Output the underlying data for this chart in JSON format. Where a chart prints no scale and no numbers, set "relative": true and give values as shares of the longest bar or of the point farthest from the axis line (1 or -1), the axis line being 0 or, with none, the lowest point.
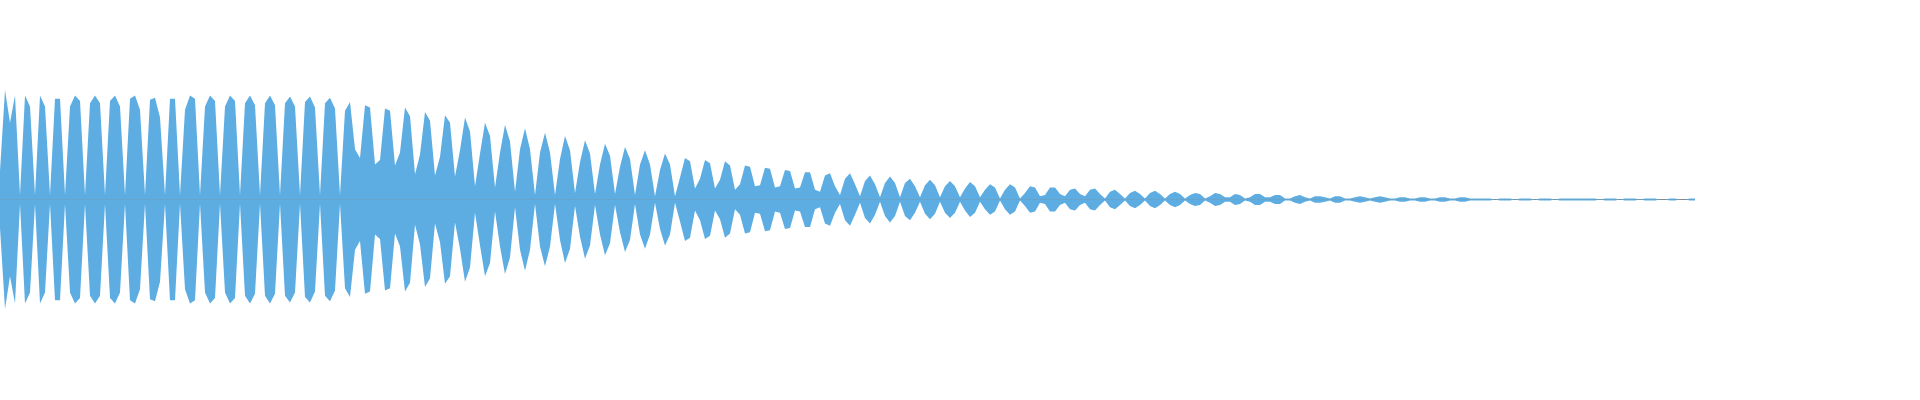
{
  "chart_data": {
    "type": "area",
    "relative": true,
    "categories": [
      null,
      null,
      null,
      null,
      null,
      null,
      null,
      null,
      null,
      null,
      null,
      null,
      null,
      null,
      null,
      null,
      null,
      null,
      null,
      null,
      null,
      null,
      null,
      null,
      null,
      null,
      null,
      null,
      null,
      null,
      null,
      null,
      null,
      null,
      null,
      null,
      null,
      null,
      null,
      null,
      null,
      null,
      null,
      null,
      null,
      null,
      null,
      null,
      null,
      null,
      null,
      null,
      null,
      null,
      null,
      null,
      null,
      null,
      null,
      null,
      null,
      null,
      null,
      null,
      null,
      null,
      null,
      null,
      null,
      null,
      null,
      null,
      null,
      null,
      null,
      null,
      null,
      null,
      null,
      null,
      null,
      null,
      null,
      null,
      null,
      null,
      null,
      null,
      null,
      null,
      null,
      null,
      null,
      null,
      null,
      null,
      null,
      null,
      null,
      null,
      null,
      null,
      null,
      null,
      null,
      null,
      null,
      null,
      null,
      null,
      null,
      null,
      null,
      null,
      null,
      null,
      null,
      null,
      null,
      null,
      null,
      null,
      null,
      null,
      null,
      null,
      null,
      null,
      null,
      null,
      null,
      null,
      null,
      null,
      null,
      null,
      null,
      null,
      null,
      null,
      null,
      null,
      null,
      null,
      null,
      null,
      null,
      null,
      null,
      null,
      null,
      null,
      null,
      null,
      null,
      null,
      null,
      null,
      null,
      null,
      null,
      null,
      null,
      null,
      null,
      null,
      null,
      null,
      null,
      null,
      null,
      null,
      null,
      null,
      null,
      null,
      null,
      null,
      null,
      null,
      null,
      null,
      null,
      null,
      null,
      null,
      null,
      null,
      null,
      null,
      null,
      null,
      null,
      null,
      null,
      null,
      null,
      null,
      null,
      null,
      null,
      null,
      null,
      null,
      null,
      null,
      null,
      null,
      null,
      null,
      null,
      null,
      null,
      null,
      null,
      null,
      null,
      null,
      null,
      null,
      null,
      null,
      null,
      null,
      null,
      null,
      null,
      null,
      null,
      null,
      null,
      null,
      null,
      null,
      null,
      null,
      null,
      null,
      null,
      null,
      null,
      null,
      null,
      null,
      null,
      null,
      null,
      null,
      null,
      null,
      null,
      null,
      null,
      null,
      null,
      null,
      null,
      null,
      null,
      null,
      null,
      null,
      null,
      null,
      null,
      null,
      null,
      null,
      null,
      null,
      null,
      null,
      null,
      null,
      null,
      null,
      null,
      null,
      null,
      null,
      null,
      null,
      null,
      null,
      null,
      null,
      null,
      null,
      null,
      null,
      null,
      null,
      null,
      null,
      null,
      null,
      null,
      null,
      null,
      null,
      null,
      null,
      null,
      null,
      null,
      null,
      null,
      null,
      null,
      null,
      null,
      null,
      null,
      null,
      null,
      null,
      null,
      null,
      null,
      null,
      null,
      null,
      null,
      null,
      null,
      null,
      null,
      null,
      null,
      null,
      null,
      null,
      null,
      null,
      null,
      null,
      null,
      null,
      null,
      null
    ],
    "series": [
      {
        "color": "#5dade2",
        "values": [
          0.26,
          1,
          0.7,
          0.95,
          0.04,
          0.95,
          0.85,
          0.04,
          0.95,
          0.85,
          0.04,
          0.92,
          0.92,
          0.04,
          0.85,
          0.95,
          0.9,
          0.04,
          0.88,
          0.95,
          0.88,
          0.04,
          0.9,
          0.95,
          0.85,
          0.04,
          0.92,
          0.95,
          0.82,
          0.04,
          0.91,
          0.93,
          0.75,
          0.04,
          0.92,
          0.92,
          0.04,
          0.82,
          0.95,
          0.92,
          0.04,
          0.85,
          0.95,
          0.9,
          0.04,
          0.85,
          0.95,
          0.9,
          0.04,
          0.88,
          0.95,
          0.86,
          0.04,
          0.88,
          0.95,
          0.86,
          0.04,
          0.88,
          0.94,
          0.85,
          0.04,
          0.89,
          0.94,
          0.84,
          0.04,
          0.88,
          0.93,
          0.83,
          0.04,
          0.81,
          0.89,
          0.46,
          0.38,
          0.86,
          0.84,
          0.32,
          0.36,
          0.83,
          0.81,
          0.31,
          0.43,
          0.84,
          0.76,
          0.23,
          0.41,
          0.8,
          0.72,
          0.22,
          0.39,
          0.77,
          0.7,
          0.21,
          0.45,
          0.75,
          0.62,
          0.12,
          0.42,
          0.7,
          0.58,
          0.11,
          0.43,
          0.68,
          0.53,
          0.07,
          0.46,
          0.65,
          0.46,
          0.04,
          0.43,
          0.61,
          0.43,
          0.04,
          0.37,
          0.58,
          0.45,
          0.06,
          0.34,
          0.54,
          0.42,
          0.05,
          0.32,
          0.51,
          0.4,
          0.05,
          0.3,
          0.48,
          0.37,
          0.04,
          0.32,
          0.45,
          0.32,
          0.03,
          0.27,
          0.42,
          0.32,
          0.03,
          0.2,
          0.38,
          0.35,
          0.1,
          0.19,
          0.36,
          0.33,
          0.1,
          0.18,
          0.35,
          0.31,
          0.09,
          0.14,
          0.31,
          0.3,
          0.12,
          0.13,
          0.29,
          0.28,
          0.11,
          0.12,
          0.27,
          0.26,
          0.1,
          0.11,
          0.25,
          0.25,
          0.09,
          0.07,
          0.22,
          0.24,
          0.12,
          0.04,
          0.19,
          0.24,
          0.14,
          0.03,
          0.17,
          0.22,
          0.14,
          0.02,
          0.15,
          0.21,
          0.15,
          0.02,
          0.15,
          0.19,
          0.12,
          0.02,
          0.13,
          0.18,
          0.13,
          0.02,
          0.12,
          0.17,
          0.12,
          0.02,
          0.1,
          0.16,
          0.12,
          0.02,
          0.09,
          0.14,
          0.11,
          0.01,
          0.09,
          0.14,
          0.11,
          0.01,
          0.06,
          0.12,
          0.11,
          0.03,
          0.04,
          0.11,
          0.11,
          0.05,
          0.03,
          0.09,
          0.1,
          0.05,
          0.03,
          0.09,
          0.1,
          0.05,
          0.01,
          0.07,
          0.09,
          0.05,
          0.01,
          0.06,
          0.08,
          0.05,
          0.01,
          0.06,
          0.08,
          0.05,
          0.01,
          0.05,
          0.07,
          0.05,
          0.01,
          0.04,
          0.06,
          0.05,
          0.01,
          0.03,
          0.06,
          0.05,
          0.02,
          0.02,
          0.05,
          0.04,
          0.01,
          0.02,
          0.05,
          0.05,
          0.02,
          0.02,
          0.04,
          0.04,
          0.01,
          0.01,
          0.03,
          0.04,
          0.02,
          0.01,
          0.03,
          0.03,
          0.02,
          0.01,
          0.03,
          0.03,
          0.01,
          0.01,
          0.02,
          0.03,
          0.02,
          0.01,
          0.02,
          0.03,
          0.02,
          0.01,
          0.01,
          0.02,
          0.02,
          0.01,
          0.01,
          0.02,
          0.02,
          0.01,
          0.01,
          0.02,
          0.02,
          0.01,
          0.01,
          0.02,
          0.02,
          0.01,
          0.01,
          0.01,
          0.01,
          0.01,
          0,
          0.01,
          0.01,
          0.01,
          0,
          0.01,
          0.01,
          0.01,
          0,
          0.01,
          0.01,
          0.01,
          0,
          0.01,
          0.01,
          0.01,
          0.01,
          0.01,
          0.01,
          0.01,
          0.01,
          0,
          0.01,
          0.01,
          0.01,
          0,
          0.01,
          0.01,
          0.01,
          0,
          0.01,
          0.01,
          0.01,
          0,
          0,
          0.01,
          0.01,
          0,
          0,
          0.01,
          0.01
        ]
      },
      {
        "color": "#5dade2",
        "values": [
          -0.26,
          -1,
          -0.7,
          -0.95,
          -0.04,
          -0.95,
          -0.85,
          -0.04,
          -0.95,
          -0.85,
          -0.04,
          -0.92,
          -0.92,
          -0.04,
          -0.85,
          -0.95,
          -0.9,
          -0.04,
          -0.88,
          -0.95,
          -0.88,
          -0.04,
          -0.9,
          -0.95,
          -0.85,
          -0.04,
          -0.92,
          -0.95,
          -0.82,
          -0.04,
          -0.91,
          -0.93,
          -0.75,
          -0.04,
          -0.92,
          -0.92,
          -0.04,
          -0.82,
          -0.95,
          -0.92,
          -0.04,
          -0.85,
          -0.95,
          -0.9,
          -0.04,
          -0.85,
          -0.95,
          -0.9,
          -0.04,
          -0.88,
          -0.95,
          -0.86,
          -0.04,
          -0.88,
          -0.95,
          -0.86,
          -0.04,
          -0.88,
          -0.94,
          -0.85,
          -0.04,
          -0.89,
          -0.94,
          -0.84,
          -0.04,
          -0.88,
          -0.93,
          -0.83,
          -0.04,
          -0.81,
          -0.89,
          -0.46,
          -0.38,
          -0.86,
          -0.84,
          -0.32,
          -0.36,
          -0.83,
          -0.81,
          -0.31,
          -0.43,
          -0.84,
          -0.76,
          -0.23,
          -0.41,
          -0.8,
          -0.72,
          -0.22,
          -0.39,
          -0.77,
          -0.7,
          -0.21,
          -0.45,
          -0.75,
          -0.62,
          -0.12,
          -0.42,
          -0.7,
          -0.58,
          -0.11,
          -0.43,
          -0.68,
          -0.53,
          -0.07,
          -0.46,
          -0.65,
          -0.46,
          -0.04,
          -0.43,
          -0.61,
          -0.43,
          -0.04,
          -0.37,
          -0.58,
          -0.45,
          -0.06,
          -0.34,
          -0.54,
          -0.42,
          -0.05,
          -0.32,
          -0.51,
          -0.4,
          -0.05,
          -0.3,
          -0.48,
          -0.37,
          -0.04,
          -0.32,
          -0.45,
          -0.32,
          -0.03,
          -0.27,
          -0.42,
          -0.32,
          -0.03,
          -0.2,
          -0.38,
          -0.35,
          -0.1,
          -0.19,
          -0.36,
          -0.33,
          -0.1,
          -0.18,
          -0.35,
          -0.31,
          -0.09,
          -0.14,
          -0.31,
          -0.3,
          -0.12,
          -0.13,
          -0.29,
          -0.28,
          -0.11,
          -0.12,
          -0.27,
          -0.26,
          -0.1,
          -0.11,
          -0.25,
          -0.25,
          -0.09,
          -0.07,
          -0.22,
          -0.24,
          -0.12,
          -0.04,
          -0.19,
          -0.24,
          -0.14,
          -0.03,
          -0.17,
          -0.22,
          -0.14,
          -0.02,
          -0.15,
          -0.21,
          -0.15,
          -0.02,
          -0.15,
          -0.19,
          -0.12,
          -0.02,
          -0.13,
          -0.18,
          -0.13,
          -0.02,
          -0.12,
          -0.17,
          -0.12,
          -0.02,
          -0.1,
          -0.16,
          -0.12,
          -0.02,
          -0.09,
          -0.14,
          -0.11,
          -0.01,
          -0.09,
          -0.14,
          -0.11,
          -0.01,
          -0.06,
          -0.12,
          -0.11,
          -0.03,
          -0.04,
          -0.11,
          -0.11,
          -0.05,
          -0.03,
          -0.09,
          -0.1,
          -0.05,
          -0.03,
          -0.09,
          -0.1,
          -0.05,
          -0.01,
          -0.07,
          -0.09,
          -0.05,
          -0.01,
          -0.06,
          -0.08,
          -0.05,
          -0.01,
          -0.06,
          -0.08,
          -0.05,
          -0.01,
          -0.05,
          -0.07,
          -0.05,
          -0.01,
          -0.04,
          -0.06,
          -0.05,
          -0.01,
          -0.03,
          -0.06,
          -0.05,
          -0.02,
          -0.02,
          -0.05,
          -0.04,
          -0.01,
          -0.02,
          -0.05,
          -0.05,
          -0.02,
          -0.02,
          -0.04,
          -0.04,
          -0.01,
          -0.01,
          -0.03,
          -0.04,
          -0.02,
          -0.01,
          -0.03,
          -0.03,
          -0.02,
          -0.01,
          -0.03,
          -0.03,
          -0.01,
          -0.01,
          -0.02,
          -0.03,
          -0.02,
          -0.01,
          -0.02,
          -0.03,
          -0.02,
          -0.01,
          -0.01,
          -0.02,
          -0.02,
          -0.01,
          -0.01,
          -0.02,
          -0.02,
          -0.01,
          -0.01,
          -0.02,
          -0.02,
          -0.01,
          -0.01,
          -0.02,
          -0.02,
          -0.01,
          -0.01,
          -0.01,
          -0.01,
          -0.01,
          0,
          -0.01,
          -0.01,
          -0.01,
          0,
          -0.01,
          -0.01,
          -0.01,
          0,
          -0.01,
          -0.01,
          -0.01,
          0,
          -0.01,
          -0.01,
          -0.01,
          -0.01,
          -0.01,
          -0.01,
          -0.01,
          -0.01,
          0,
          -0.01,
          -0.01,
          -0.01,
          0,
          -0.01,
          -0.01,
          -0.01,
          0,
          -0.01,
          -0.01,
          -0.01,
          0,
          0,
          -0.01,
          -0.01,
          0,
          0,
          -0.01,
          -0.01
        ]
      }
    ]
  }
}
